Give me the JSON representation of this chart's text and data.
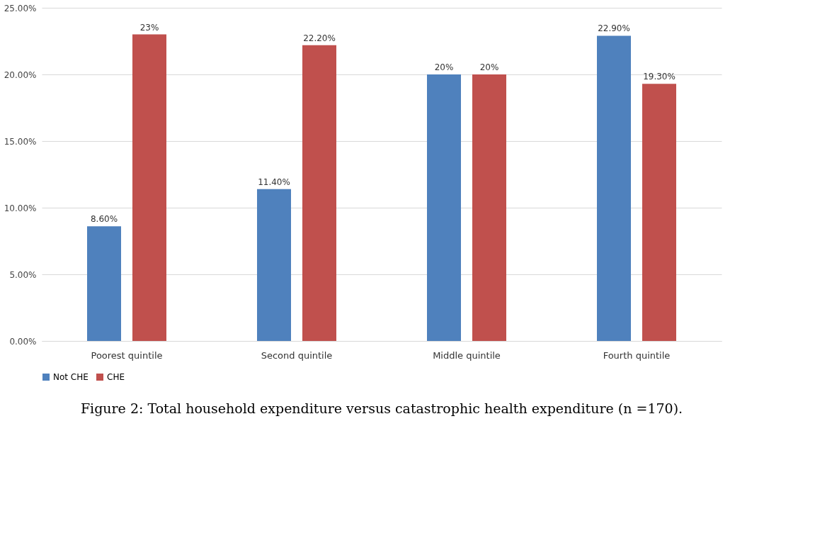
{
  "chart_data": {
    "type": "bar",
    "categories": [
      "Poorest quintile",
      "Second quintile",
      "Middle quintile",
      "Fourth quintile"
    ],
    "series": [
      {
        "name": "Not CHE",
        "color": "#4f81bd",
        "values": [
          8.6,
          11.4,
          20,
          22.9
        ],
        "value_labels": [
          "8.60%",
          "11.40%",
          "20%",
          "22.90%"
        ]
      },
      {
        "name": "CHE",
        "color": "#c0504d",
        "values": [
          23,
          22.2,
          20,
          19.3
        ],
        "value_labels": [
          "23%",
          "22.20%",
          "20%",
          "19.30%"
        ]
      }
    ],
    "ylim": [
      0,
      25
    ],
    "yticks": [
      {
        "value": 0,
        "label": "0.00%"
      },
      {
        "value": 5,
        "label": "5.00%"
      },
      {
        "value": 10,
        "label": "10.00%"
      },
      {
        "value": 15,
        "label": "15.00%"
      },
      {
        "value": 20,
        "label": "20.00%"
      },
      {
        "value": 25,
        "label": "25.00%"
      }
    ],
    "grid": "y",
    "legend": "bottom",
    "annotations": [
      "Figure 2: Total household expenditure versus catastrophic health expenditure (n =170)."
    ]
  }
}
